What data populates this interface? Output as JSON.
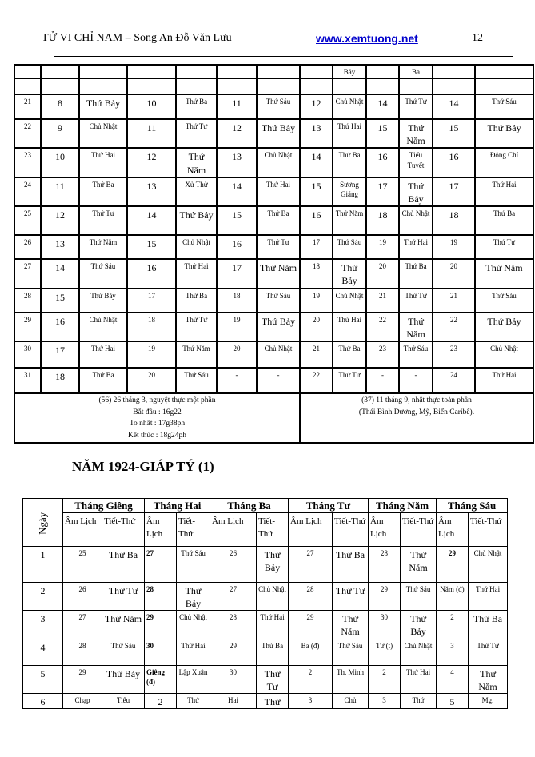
{
  "header": {
    "title": "TỬ VI CHỈ NAM – Song An Đỗ Văn Lưu",
    "link": "www.xemtuong.net",
    "page": "12"
  },
  "top_table": {
    "continuation_row": [
      "",
      "",
      "",
      "",
      "",
      "",
      "",
      "",
      "Bảy",
      "",
      "Ba",
      "",
      ""
    ],
    "empty_row": [
      "",
      "",
      "",
      "",
      "",
      "",
      "",
      "",
      "",
      "",
      "",
      "",
      ""
    ],
    "rows": [
      [
        "21",
        "8",
        "Thứ Bảy",
        "10",
        "Thứ Ba",
        "11",
        "Thứ Sáu",
        "12",
        "Chủ Nhật",
        "14",
        "Thứ Tư",
        "14",
        "Thứ Sáu"
      ],
      [
        "22",
        "9",
        "Chủ Nhật",
        "11",
        "Thứ Tư",
        "12",
        "Thứ Bảy",
        "13",
        "Thứ Hai",
        "15",
        "Thứ Năm",
        "15",
        "Thứ Bảy"
      ],
      [
        "23",
        "10",
        "Thứ Hai",
        "12",
        "Thứ Năm",
        "13",
        "Chủ Nhật",
        "14",
        "Thứ Ba",
        "16",
        "Tiểu Tuyết",
        "16",
        "Đông Chí"
      ],
      [
        "24",
        "11",
        "Thứ Ba",
        "13",
        "Xử Thử",
        "14",
        "Thứ Hai",
        "15",
        "Sương Giáng",
        "17",
        "Thứ Bảy",
        "17",
        "Thứ Hai"
      ],
      [
        "25",
        "12",
        "Thứ Tư",
        "14",
        "Thứ Bảy",
        "15",
        "Thứ Ba",
        "16",
        "Thứ Năm",
        "18",
        "Chủ Nhật",
        "18",
        "Thứ Ba"
      ],
      [
        "26",
        "13",
        "Thứ Năm",
        "15",
        "Chủ Nhật",
        "16",
        "Thứ Tư",
        "17",
        "Thứ Sáu",
        "19",
        "Thứ Hai",
        "19",
        "Thứ Tư"
      ],
      [
        "27",
        "14",
        "Thứ Sáu",
        "16",
        "Thứ Hai",
        "17",
        "Thứ Năm",
        "18",
        "Thứ Bảy",
        "20",
        "Thứ Ba",
        "20",
        "Thứ Năm"
      ],
      [
        "28",
        "15",
        "Thứ Bảy",
        "17",
        "Thứ Ba",
        "18",
        "Thứ Sáu",
        "19",
        "Chủ Nhật",
        "21",
        "Thứ Tư",
        "21",
        "Thứ Sáu"
      ],
      [
        "29",
        "16",
        "Chủ Nhật",
        "18",
        "Thứ Tư",
        "19",
        "Thứ Bảy",
        "20",
        "Thứ Hai",
        "22",
        "Thứ Năm",
        "22",
        "Thứ Bảy"
      ],
      [
        "30",
        "17",
        "Thứ Hai",
        "19",
        "Thứ Năm",
        "20",
        "Chủ Nhật",
        "21",
        "Thứ Ba",
        "23",
        "Thứ Sáu",
        "23",
        "Chủ Nhật"
      ],
      [
        "31",
        "18",
        "Thứ Ba",
        "20",
        "Thứ Sáu",
        "-",
        "-",
        "22",
        "Thứ Tư",
        "-",
        "-",
        "24",
        "Thứ Hai"
      ]
    ],
    "note_left": [
      "(56) 26 tháng 3, nguyệt thực một phần",
      "Bắt đầu : 16g22",
      "To nhất : 17g38ph",
      "Kết thúc : 18g24ph"
    ],
    "note_right": [
      "(37) 11 tháng 9, nhật thực toàn phần",
      "(Thái Bình Dương, Mỹ, Biển Caribê)."
    ]
  },
  "year_title": "NĂM 1924-GIÁP TÝ (1)",
  "bottom_table": {
    "day_header": "Ngày",
    "months": [
      "Tháng Giêng",
      "Tháng Hai",
      "Tháng Ba",
      "Tháng Tư",
      "Tháng Năm",
      "Tháng Sáu"
    ],
    "subheaders": [
      "Âm Lịch",
      "Tiết-Thứ",
      "Âm Lịch",
      "Tiết-Thứ",
      "Âm Lịch",
      "Tiết-Thứ",
      "Âm Lịch",
      "Tiết-Thứ",
      "Âm Lịch",
      "Tiết-Thứ",
      "Âm Lịch",
      "Tiết-Thứ"
    ],
    "rows": [
      [
        "1",
        "25",
        "Thứ Ba",
        "27",
        "Thứ Sáu",
        "26",
        "Thứ Bảy",
        "27",
        "Thứ Ba",
        "28",
        "Thứ Năm",
        "29",
        "Chủ Nhật"
      ],
      [
        "2",
        "26",
        "Thứ Tư",
        "28",
        "Thứ Bảy",
        "27",
        "Chủ Nhật",
        "28",
        "Thứ Tư",
        "29",
        "Thứ Sáu",
        "Năm (đ)",
        "Thứ Hai"
      ],
      [
        "3",
        "27",
        "Thứ Năm",
        "29",
        "Chủ Nhật",
        "28",
        "Thứ Hai",
        "29",
        "Thứ Năm",
        "30",
        "Thứ Bảy",
        "2",
        "Thứ Ba"
      ],
      [
        "4",
        "28",
        "Thứ Sáu",
        "30",
        "Thứ Hai",
        "29",
        "Thứ Ba",
        "Ba (đ)",
        "Thứ Sáu",
        "Tư (t)",
        "Chủ Nhật",
        "3",
        "Thứ Tư"
      ],
      [
        "5",
        "29",
        "Thứ Bảy",
        "Giêng (đ)",
        "Lập Xuân",
        "30",
        "Thứ Tư",
        "2",
        "Th. Minh",
        "2",
        "Thứ Hai",
        "4",
        "Thứ Năm"
      ],
      [
        "6",
        "Chạp",
        "Tiểu",
        "2",
        "Thứ",
        "Hai",
        "Thứ",
        "3",
        "Chủ",
        "3",
        "Thứ",
        "5",
        "Mg."
      ]
    ]
  }
}
